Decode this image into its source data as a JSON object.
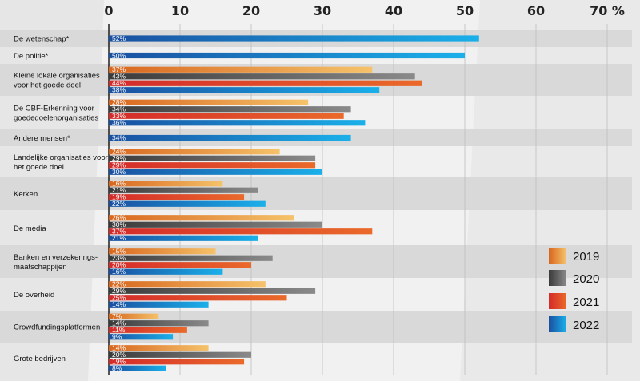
{
  "chart_data": {
    "type": "bar",
    "orientation": "horizontal",
    "xlim": [
      0,
      70
    ],
    "x_ticks": [
      "0",
      "10",
      "20",
      "30",
      "40",
      "50",
      "60",
      "70 %"
    ],
    "grid": true,
    "legend_position": "right",
    "series": [
      {
        "name": "2019",
        "color": "#e07828"
      },
      {
        "name": "2020",
        "color": "#4a4a4a"
      },
      {
        "name": "2021",
        "color": "#d93a2a"
      },
      {
        "name": "2022",
        "color": "#1080cc"
      }
    ],
    "categories": [
      {
        "label": [
          "De wetenschap*"
        ],
        "values": [
          null,
          null,
          null,
          52
        ],
        "value_labels": [
          null,
          null,
          null,
          "52%"
        ]
      },
      {
        "label": [
          "De politie*"
        ],
        "values": [
          null,
          null,
          null,
          50
        ],
        "value_labels": [
          null,
          null,
          null,
          "50%"
        ]
      },
      {
        "label": [
          "Kleine lokale organisaties",
          "voor het goede doel"
        ],
        "values": [
          37,
          43,
          44,
          38
        ],
        "value_labels": [
          "37%",
          "43%",
          "44%",
          "38%"
        ]
      },
      {
        "label": [
          "De CBF-Erkenning voor",
          "goededoelenorganisaties"
        ],
        "values": [
          28,
          34,
          33,
          36
        ],
        "value_labels": [
          "28%",
          "34%",
          "33%",
          "36%"
        ]
      },
      {
        "label": [
          "Andere mensen*"
        ],
        "values": [
          null,
          null,
          null,
          34
        ],
        "value_labels": [
          null,
          null,
          null,
          "34%"
        ]
      },
      {
        "label": [
          "Landelijke organisaties voor",
          "het goede doel"
        ],
        "values": [
          24,
          29,
          29,
          30
        ],
        "value_labels": [
          "24%",
          "29%",
          "29%",
          "30%"
        ]
      },
      {
        "label": [
          "Kerken"
        ],
        "values": [
          16,
          21,
          19,
          22
        ],
        "value_labels": [
          "16%",
          "21%",
          "19%",
          "22%"
        ]
      },
      {
        "label": [
          "De media"
        ],
        "values": [
          26,
          30,
          37,
          21
        ],
        "value_labels": [
          "26%",
          "30%",
          "37%",
          "21%"
        ]
      },
      {
        "label": [
          "Banken en verzekerings-",
          "maatschappijen"
        ],
        "values": [
          15,
          23,
          20,
          16
        ],
        "value_labels": [
          "15%",
          "23%",
          "20%",
          "16%"
        ]
      },
      {
        "label": [
          "De overheid"
        ],
        "values": [
          22,
          29,
          25,
          14
        ],
        "value_labels": [
          "22%",
          "29%",
          "25%",
          "14%"
        ]
      },
      {
        "label": [
          "Crowdfundingsplatformen"
        ],
        "values": [
          7,
          14,
          11,
          9
        ],
        "value_labels": [
          "7%",
          "14%",
          "11%",
          "9%"
        ]
      },
      {
        "label": [
          "Grote bedrijven"
        ],
        "values": [
          14,
          20,
          19,
          8
        ],
        "value_labels": [
          "14%",
          "20%",
          "19%",
          "8%"
        ]
      }
    ]
  }
}
